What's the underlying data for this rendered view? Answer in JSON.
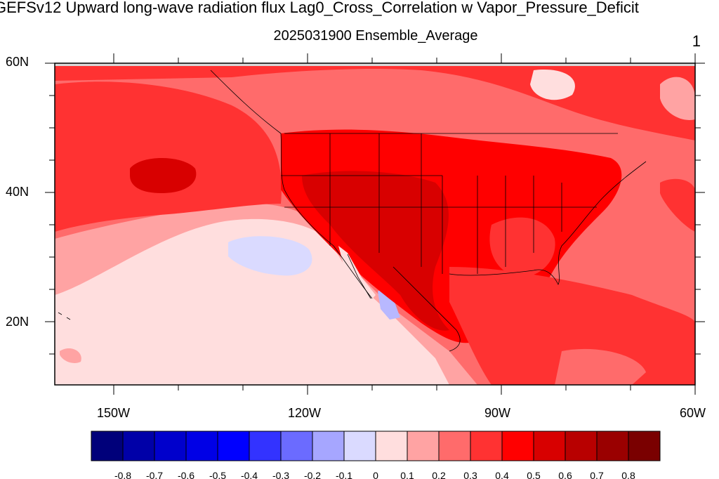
{
  "title": "GEFSv12 Upward long-wave radiation flux Lag0_Cross_Correlation w Vapor_Pressure_Deficit",
  "subtitle": "2025031900 Ensemble_Average",
  "page_number": "1",
  "map": {
    "lat_labels": [
      "60N",
      "40N",
      "20N"
    ],
    "lon_labels": [
      "150W",
      "120W",
      "90W",
      "60W"
    ]
  },
  "colorbar": {
    "colors": [
      "#00007a",
      "#0000a8",
      "#0000cc",
      "#0000e6",
      "#0000ff",
      "#3333ff",
      "#6b6bff",
      "#a6a6ff",
      "#dadaff",
      "#ffdede",
      "#ffa3a3",
      "#ff6b6b",
      "#ff3232",
      "#ff0000",
      "#d80000",
      "#b80000",
      "#9a0000",
      "#7a0000"
    ],
    "labels": [
      "-0.8",
      "-0.7",
      "-0.6",
      "-0.5",
      "-0.4",
      "-0.3",
      "-0.2",
      "-0.1",
      "0",
      "0.1",
      "0.2",
      "0.3",
      "0.4",
      "0.5",
      "0.6",
      "0.7",
      "0.8"
    ]
  }
}
